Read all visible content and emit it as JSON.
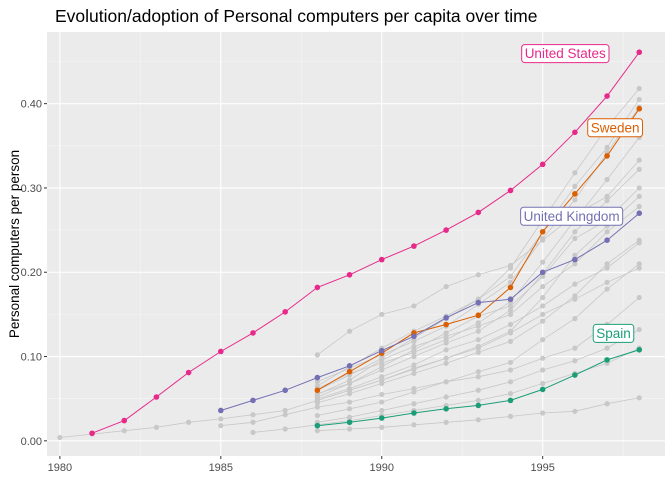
{
  "chart_data": {
    "type": "line",
    "title": "Evolution/adoption of Personal computers per capita over time",
    "xlabel": "",
    "ylabel": "Personal computers per person",
    "xlim": [
      1979.6,
      1998.8
    ],
    "ylim": [
      -0.018,
      0.485
    ],
    "x_ticks": [
      1980,
      1985,
      1990,
      1995
    ],
    "x_tick_labels": [
      "1980",
      "1985",
      "1990",
      "1995"
    ],
    "y_ticks": [
      0.0,
      0.1,
      0.2,
      0.3,
      0.4
    ],
    "y_tick_labels": [
      "0.00",
      "0.10",
      "0.20",
      "0.30",
      "0.40"
    ],
    "grid": true,
    "legend": "none",
    "colors": {
      "background": "#ebebeb",
      "grid_major": "#ffffff",
      "grid_minor": "#f5f5f5",
      "other_countries": "#c8c8c8"
    },
    "highlighted_series": [
      {
        "name": "United States",
        "color": "#e7298a",
        "x": [
          1981,
          1982,
          1983,
          1984,
          1985,
          1986,
          1987,
          1988,
          1989,
          1990,
          1991,
          1992,
          1993,
          1994,
          1995,
          1996,
          1997,
          1998
        ],
        "y": [
          0.009,
          0.024,
          0.052,
          0.081,
          0.106,
          0.128,
          0.153,
          0.182,
          0.197,
          0.215,
          0.231,
          0.25,
          0.271,
          0.297,
          0.328,
          0.366,
          0.409,
          0.461
        ]
      },
      {
        "name": "Sweden",
        "color": "#d95f02",
        "x": [
          1988,
          1989,
          1990,
          1991,
          1992,
          1993,
          1994,
          1995,
          1996,
          1997,
          1998
        ],
        "y": [
          0.06,
          0.082,
          0.104,
          0.128,
          0.138,
          0.149,
          0.182,
          0.248,
          0.293,
          0.338,
          0.394
        ]
      },
      {
        "name": "United Kingdom",
        "color": "#7570b3",
        "x": [
          1985,
          1986,
          1987,
          1988,
          1989,
          1990,
          1991,
          1992,
          1993,
          1994,
          1995,
          1996,
          1997,
          1998
        ],
        "y": [
          0.036,
          0.048,
          0.06,
          0.075,
          0.089,
          0.107,
          0.124,
          0.146,
          0.164,
          0.168,
          0.2,
          0.215,
          0.238,
          0.27
        ]
      },
      {
        "name": "Spain",
        "color": "#1b9e77",
        "x": [
          1988,
          1989,
          1990,
          1991,
          1992,
          1993,
          1994,
          1995,
          1996,
          1997,
          1998
        ],
        "y": [
          0.018,
          0.022,
          0.027,
          0.033,
          0.038,
          0.042,
          0.048,
          0.061,
          0.078,
          0.096,
          0.108
        ]
      }
    ],
    "background_series": [
      {
        "x": [
          1980,
          1981,
          1982,
          1983,
          1984,
          1985,
          1986,
          1987,
          1988,
          1989,
          1990,
          1991,
          1992,
          1993,
          1994,
          1995,
          1996,
          1997,
          1998
        ],
        "y": [
          0.004,
          0.008,
          0.012,
          0.016,
          0.022,
          0.026,
          0.031,
          0.036,
          0.048,
          0.06,
          0.072,
          0.085,
          0.098,
          0.11,
          0.128,
          0.15,
          0.168,
          0.188,
          0.205
        ]
      },
      {
        "x": [
          1985,
          1986,
          1987,
          1988,
          1989,
          1990,
          1991,
          1992,
          1993,
          1994,
          1995,
          1996,
          1997,
          1998
        ],
        "y": [
          0.018,
          0.022,
          0.031,
          0.04,
          0.046,
          0.055,
          0.062,
          0.07,
          0.076,
          0.084,
          0.098,
          0.11,
          0.138,
          0.17
        ]
      },
      {
        "x": [
          1986,
          1987,
          1988,
          1989,
          1990,
          1991,
          1992,
          1993,
          1994,
          1995,
          1996,
          1997,
          1998
        ],
        "y": [
          0.01,
          0.014,
          0.019,
          0.024,
          0.03,
          0.036,
          0.042,
          0.048,
          0.056,
          0.068,
          0.08,
          0.092,
          0.11
        ]
      },
      {
        "x": [
          1988,
          1989,
          1990,
          1991,
          1992,
          1993,
          1994,
          1995,
          1996,
          1997,
          1998
        ],
        "y": [
          0.012,
          0.014,
          0.016,
          0.019,
          0.022,
          0.025,
          0.029,
          0.033,
          0.035,
          0.044,
          0.051
        ]
      },
      {
        "x": [
          1988,
          1989,
          1990,
          1991,
          1992,
          1993,
          1994,
          1995,
          1996,
          1997,
          1998
        ],
        "y": [
          0.102,
          0.13,
          0.15,
          0.16,
          0.183,
          0.197,
          0.208,
          0.238,
          0.268,
          0.29,
          0.333
        ]
      },
      {
        "x": [
          1988,
          1989,
          1990,
          1991,
          1992,
          1993,
          1994,
          1995,
          1996,
          1997,
          1998
        ],
        "y": [
          0.052,
          0.068,
          0.088,
          0.108,
          0.128,
          0.148,
          0.16,
          0.195,
          0.24,
          0.262,
          0.3
        ]
      },
      {
        "x": [
          1988,
          1989,
          1990,
          1991,
          1992,
          1993,
          1994,
          1995,
          1996,
          1997,
          1998
        ],
        "y": [
          0.055,
          0.072,
          0.096,
          0.112,
          0.124,
          0.136,
          0.15,
          0.183,
          0.21,
          0.248,
          0.278
        ]
      },
      {
        "x": [
          1988,
          1989,
          1990,
          1991,
          1992,
          1993,
          1994,
          1995,
          1996,
          1997,
          1998
        ],
        "y": [
          0.05,
          0.062,
          0.076,
          0.09,
          0.108,
          0.12,
          0.138,
          0.16,
          0.186,
          0.205,
          0.235
        ]
      },
      {
        "x": [
          1988,
          1989,
          1990,
          1991,
          1992,
          1993,
          1994,
          1995,
          1996,
          1997,
          1998
        ],
        "y": [
          0.03,
          0.038,
          0.046,
          0.058,
          0.07,
          0.082,
          0.093,
          0.12,
          0.145,
          0.18,
          0.21
        ]
      },
      {
        "x": [
          1988,
          1989,
          1990,
          1991,
          1992,
          1993,
          1994,
          1995,
          1996,
          1997,
          1998
        ],
        "y": [
          0.022,
          0.028,
          0.036,
          0.044,
          0.052,
          0.06,
          0.07,
          0.084,
          0.095,
          0.11,
          0.132
        ]
      },
      {
        "x": [
          1988,
          1989,
          1990,
          1991,
          1992,
          1993,
          1994,
          1995,
          1996,
          1997,
          1998
        ],
        "y": [
          0.06,
          0.078,
          0.098,
          0.122,
          0.145,
          0.168,
          0.205,
          0.262,
          0.318,
          0.372,
          0.418
        ]
      },
      {
        "x": [
          1988,
          1989,
          1990,
          1991,
          1992,
          1993,
          1994,
          1995,
          1996,
          1997,
          1998
        ],
        "y": [
          0.065,
          0.088,
          0.11,
          0.13,
          0.148,
          0.168,
          0.195,
          0.248,
          0.302,
          0.348,
          0.405
        ]
      },
      {
        "x": [
          1988,
          1989,
          1990,
          1991,
          1992,
          1993,
          1994,
          1995,
          1996,
          1997,
          1998
        ],
        "y": [
          0.07,
          0.086,
          0.102,
          0.118,
          0.136,
          0.162,
          0.188,
          0.24,
          0.286,
          0.342,
          0.396
        ]
      },
      {
        "x": [
          1988,
          1989,
          1990,
          1991,
          1992,
          1993,
          1994,
          1995,
          1996,
          1997,
          1998
        ],
        "y": [
          0.062,
          0.08,
          0.092,
          0.105,
          0.12,
          0.14,
          0.165,
          0.212,
          0.262,
          0.31,
          0.36
        ]
      },
      {
        "x": [
          1988,
          1989,
          1990,
          1991,
          1992,
          1993,
          1994,
          1995,
          1996,
          1997,
          1998
        ],
        "y": [
          0.056,
          0.068,
          0.084,
          0.1,
          0.116,
          0.13,
          0.155,
          0.198,
          0.248,
          0.285,
          0.322
        ]
      },
      {
        "x": [
          1988,
          1989,
          1990,
          1991,
          1992,
          1993,
          1994,
          1995,
          1996,
          1997,
          1998
        ],
        "y": [
          0.048,
          0.06,
          0.072,
          0.086,
          0.098,
          0.112,
          0.13,
          0.17,
          0.22,
          0.255,
          0.29
        ]
      },
      {
        "x": [
          1988,
          1989,
          1990,
          1991,
          1992,
          1993,
          1994,
          1995,
          1996,
          1997,
          1998
        ],
        "y": [
          0.045,
          0.056,
          0.068,
          0.08,
          0.092,
          0.105,
          0.118,
          0.142,
          0.172,
          0.21,
          0.238
        ]
      }
    ],
    "annotations": [
      {
        "text": "United States",
        "series": "United States",
        "x": 1995.7,
        "y": 0.46
      },
      {
        "text": "Sweden",
        "series": "Sweden",
        "x": 1997.25,
        "y": 0.372
      },
      {
        "text": "United Kingdom",
        "series": "United Kingdom",
        "x": 1995.9,
        "y": 0.267
      },
      {
        "text": "Spain",
        "series": "Spain",
        "x": 1997.2,
        "y": 0.128
      }
    ]
  }
}
